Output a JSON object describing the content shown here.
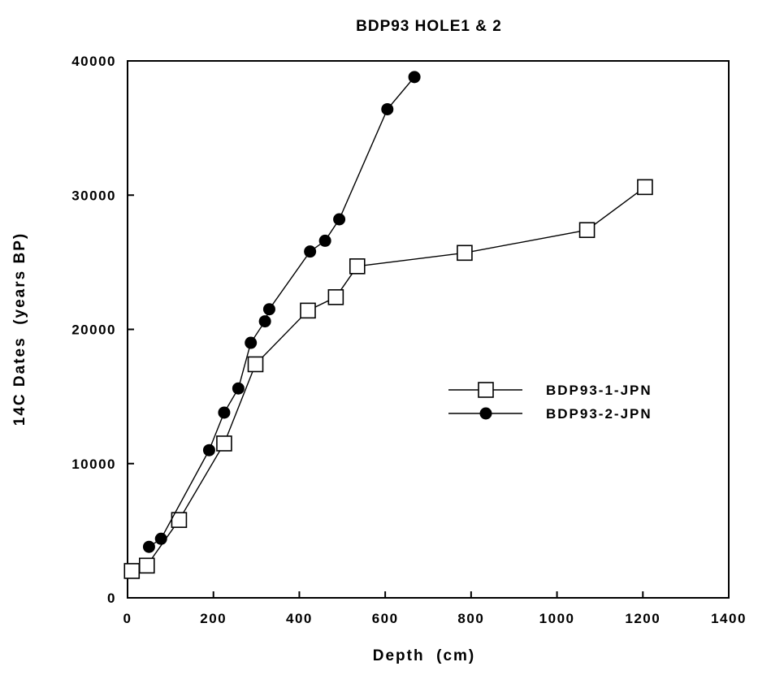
{
  "chart_data": {
    "type": "line",
    "title": "BDP93 HOLE1 & 2",
    "xlabel": "Depth  (cm)",
    "ylabel": "14C Dates  (years BP)",
    "xlim": [
      0,
      1400
    ],
    "ylim": [
      0,
      40000
    ],
    "xticks": [
      0,
      200,
      400,
      600,
      800,
      1000,
      1200,
      1400
    ],
    "yticks": [
      0,
      10000,
      20000,
      30000,
      40000
    ],
    "xtick_labels": [
      "0",
      "200",
      "400",
      "600",
      "800",
      "1000",
      "1200",
      "1400"
    ],
    "ytick_labels": [
      "0",
      "10000",
      "20000",
      "30000",
      "40000"
    ],
    "grid": false,
    "legend_position": "right",
    "series": [
      {
        "name": "BDP93-1-JPN",
        "marker": "open-square",
        "x": [
          10,
          45,
          120,
          225,
          298,
          420,
          485,
          535,
          785,
          1070,
          1205
        ],
        "y": [
          2000,
          2400,
          5800,
          11500,
          17400,
          21400,
          22400,
          24700,
          25700,
          27400,
          30600
        ]
      },
      {
        "name": "BDP93-2-JPN",
        "marker": "filled-circle",
        "x": [
          50,
          78,
          190,
          225,
          258,
          287,
          320,
          330,
          425,
          460,
          493,
          605,
          668
        ],
        "y": [
          3800,
          4400,
          11000,
          13800,
          15600,
          19000,
          20600,
          21500,
          25800,
          26600,
          28200,
          36400,
          38800
        ]
      }
    ]
  }
}
